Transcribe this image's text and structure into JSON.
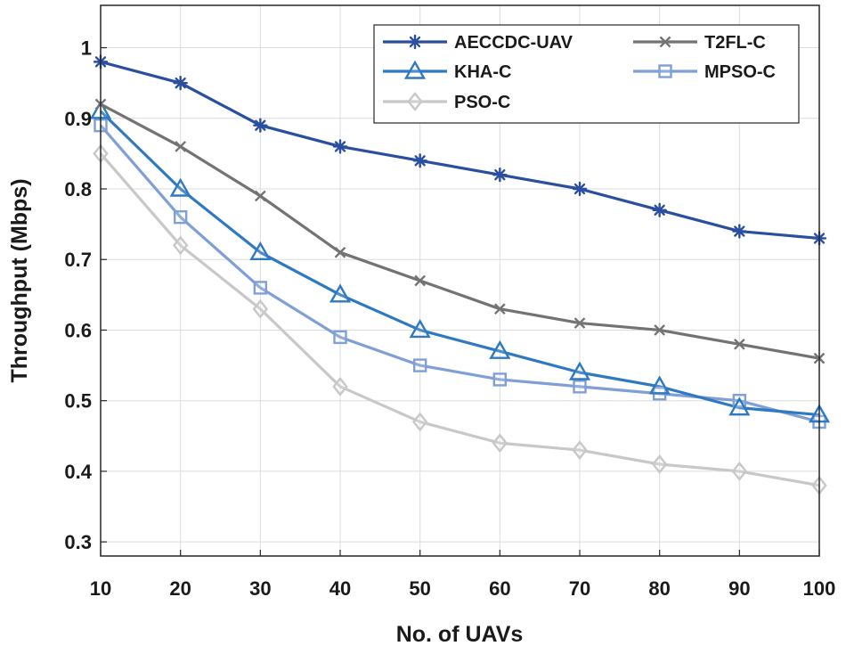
{
  "chart_data": {
    "type": "line",
    "title": "",
    "xlabel": "No. of UAVs",
    "ylabel": "Throughput (Mbps)",
    "x": [
      10,
      20,
      30,
      40,
      50,
      60,
      70,
      80,
      90,
      100
    ],
    "xlim": [
      10,
      100
    ],
    "ylim": [
      0.28,
      1.06
    ],
    "xticks": [
      10,
      20,
      30,
      40,
      50,
      60,
      70,
      80,
      90,
      100
    ],
    "yticks": [
      0.3,
      0.4,
      0.5,
      0.6,
      0.7,
      0.8,
      0.9,
      1
    ],
    "grid": true,
    "legend_position": "top-right",
    "series": [
      {
        "name": "AECCDC-UAV",
        "color": "#2a4fa0",
        "marker": "asterisk",
        "values": [
          0.98,
          0.95,
          0.89,
          0.86,
          0.84,
          0.82,
          0.8,
          0.77,
          0.74,
          0.73
        ]
      },
      {
        "name": "T2FL-C",
        "color": "#737373",
        "marker": "x",
        "values": [
          0.92,
          0.86,
          0.79,
          0.71,
          0.67,
          0.63,
          0.61,
          0.6,
          0.58,
          0.56
        ]
      },
      {
        "name": "KHA-C",
        "color": "#2f79c2",
        "marker": "triangle",
        "values": [
          0.91,
          0.8,
          0.71,
          0.65,
          0.6,
          0.57,
          0.54,
          0.52,
          0.49,
          0.48
        ]
      },
      {
        "name": "MPSO-C",
        "color": "#7f9fd6",
        "marker": "square",
        "values": [
          0.89,
          0.76,
          0.66,
          0.59,
          0.55,
          0.53,
          0.52,
          0.51,
          0.5,
          0.47
        ]
      },
      {
        "name": "PSO-C",
        "color": "#c8c8c8",
        "marker": "diamond",
        "values": [
          0.85,
          0.72,
          0.63,
          0.52,
          0.47,
          0.44,
          0.43,
          0.41,
          0.4,
          0.38
        ]
      }
    ]
  }
}
